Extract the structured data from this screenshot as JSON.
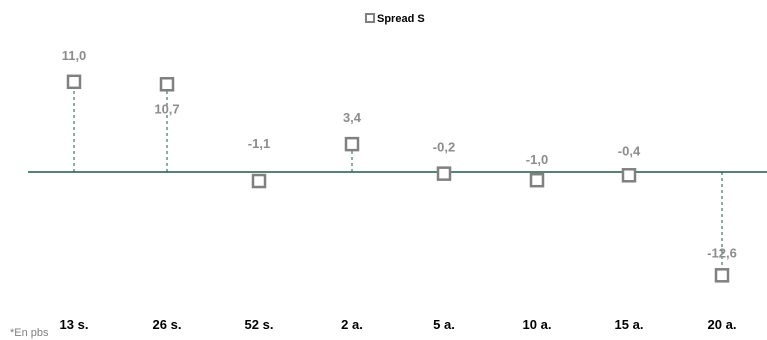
{
  "chart_data": {
    "type": "scatter",
    "categories": [
      "13 s.",
      "26 s.",
      "52 s.",
      "2 a.",
      "5 a.",
      "10 a.",
      "15 a.",
      "20 a."
    ],
    "series": [
      {
        "name": "Spread S",
        "values": [
          11.0,
          10.7,
          -1.1,
          3.4,
          -0.2,
          -1.0,
          -0.4,
          -12.6
        ]
      }
    ],
    "data_labels": [
      "11,0",
      "10,7",
      "-1,1",
      "3,4",
      "-0,2",
      "-1,0",
      "-0,4",
      "-12,6"
    ],
    "legend_position": "top-center",
    "grid": false,
    "colors": {
      "marker": "#808080",
      "axis": "#1e5c45",
      "labels": "#8c8c8c"
    }
  },
  "footnote": "*En pbs"
}
